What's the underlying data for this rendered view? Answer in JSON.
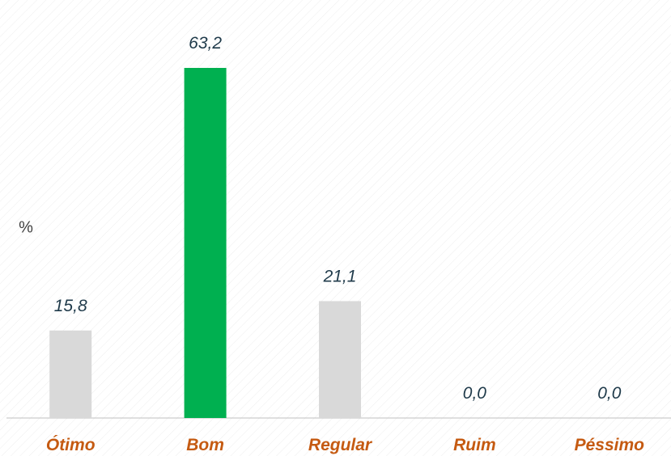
{
  "chart_data": {
    "type": "bar",
    "ylabel": "%",
    "categories": [
      "Ótimo",
      "Bom",
      "Regular",
      "Ruim",
      "Péssimo"
    ],
    "values": [
      15.8,
      63.2,
      21.1,
      0.0,
      0.0
    ],
    "value_labels": [
      "15,8",
      "63,2",
      "21,1",
      "0,0",
      "0,0"
    ],
    "colors": [
      "#d9d9d9",
      "#00b050",
      "#d9d9d9",
      "#d9d9d9",
      "#d9d9d9"
    ]
  }
}
